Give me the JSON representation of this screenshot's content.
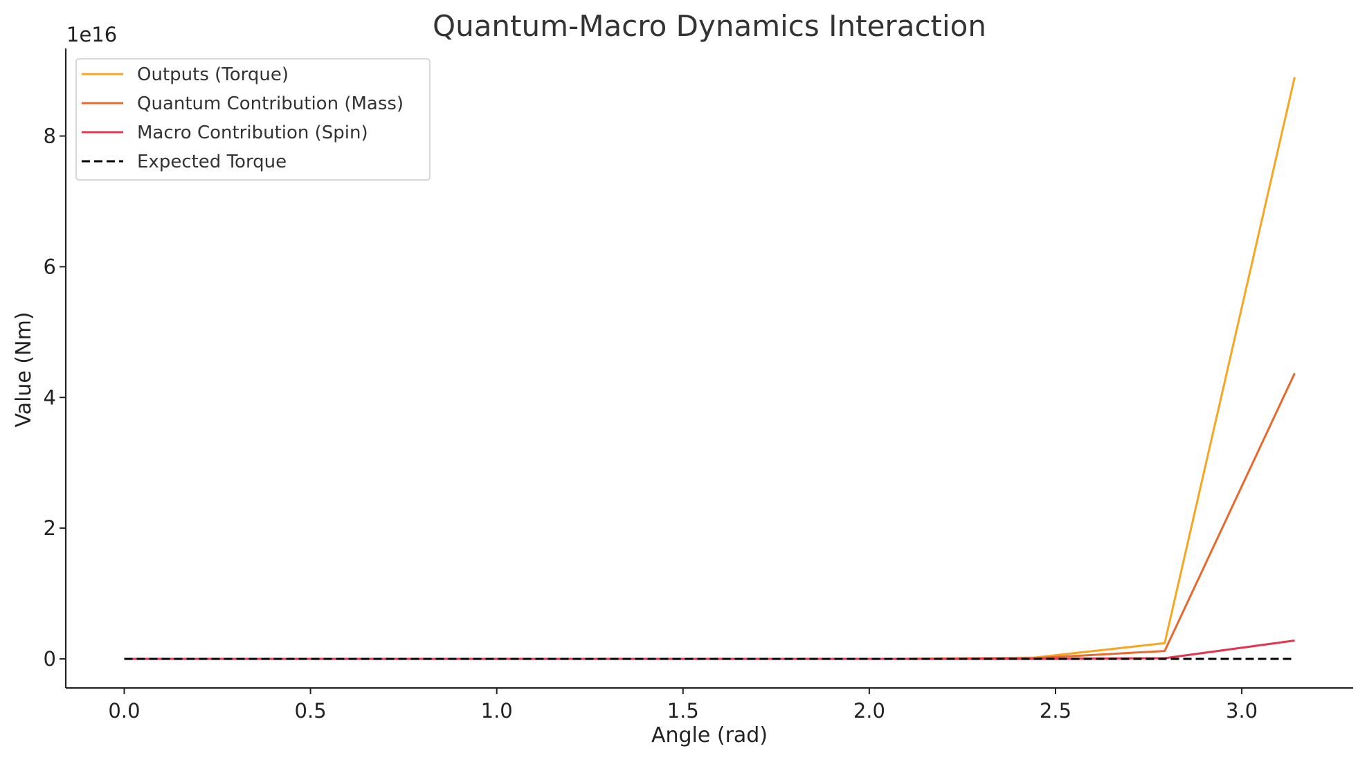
{
  "chart_data": {
    "type": "line",
    "title": "Quantum-Macro Dynamics Interaction",
    "xlabel": "Angle (rad)",
    "ylabel": "Value (Nm)",
    "y_offset_text": "1e16",
    "y_scale": 1e+16,
    "xlim": [
      -0.157,
      3.299
    ],
    "ylim": [
      -0.445,
      9.34
    ],
    "xticks": [
      0.0,
      0.5,
      1.0,
      1.5,
      2.0,
      2.5,
      3.0
    ],
    "xtick_labels": [
      "0.0",
      "0.5",
      "1.0",
      "1.5",
      "2.0",
      "2.5",
      "3.0"
    ],
    "yticks": [
      0,
      2,
      4,
      6,
      8
    ],
    "ytick_labels": [
      "0",
      "2",
      "4",
      "6",
      "8"
    ],
    "grid": false,
    "legend_position": "top-left",
    "x": [
      0.0,
      0.349,
      0.698,
      1.047,
      1.396,
      1.745,
      2.094,
      2.443,
      2.793,
      3.142
    ],
    "series": [
      {
        "name": "Outputs (Torque)",
        "color": "#f5a623",
        "dash": "solid",
        "values": [
          0,
          0,
          0,
          0,
          0,
          0,
          0,
          0.02,
          0.24,
          8.9
        ]
      },
      {
        "name": "Quantum Contribution (Mass)",
        "color": "#e8692c",
        "dash": "solid",
        "values": [
          0,
          0,
          0,
          0,
          0,
          0,
          0,
          0.01,
          0.12,
          4.37
        ]
      },
      {
        "name": "Macro Contribution (Spin)",
        "color": "#e33550",
        "dash": "solid",
        "values": [
          0,
          0,
          0,
          0,
          0,
          0,
          0,
          0,
          0.01,
          0.28
        ]
      },
      {
        "name": "Expected Torque",
        "color": "#000000",
        "dash": "dashed",
        "values": [
          0,
          0,
          0,
          0,
          0,
          0,
          0,
          0,
          0,
          0
        ]
      }
    ]
  }
}
